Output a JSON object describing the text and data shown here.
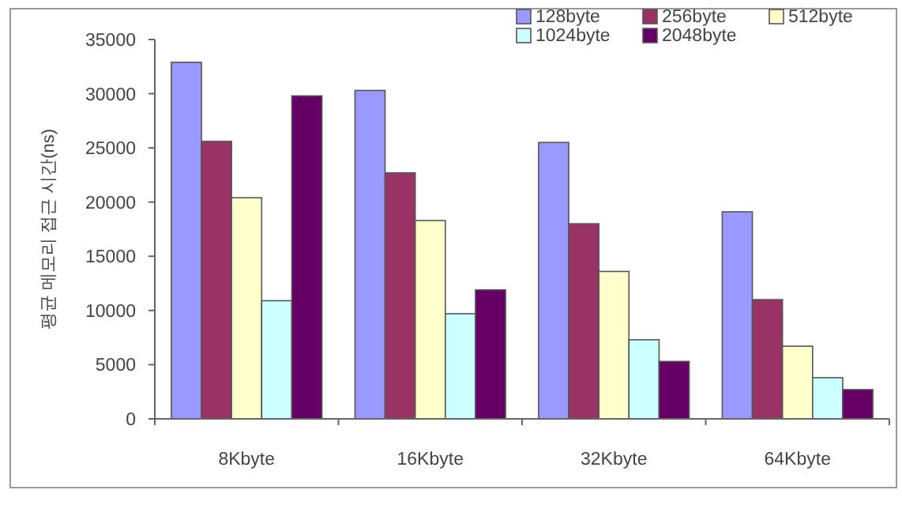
{
  "chart_data": {
    "type": "bar",
    "ylabel": "평균 메모리 접근 시간(ns)",
    "categories": [
      "8Kbyte",
      "16Kbyte",
      "32Kbyte",
      "64Kbyte"
    ],
    "series": [
      {
        "name": "128byte",
        "color": "#9999ff",
        "values": [
          32900,
          30300,
          25500,
          19100
        ]
      },
      {
        "name": "256byte",
        "color": "#993366",
        "values": [
          25600,
          22700,
          18000,
          11000
        ]
      },
      {
        "name": "512byte",
        "color": "#ffffcc",
        "values": [
          20400,
          18300,
          13600,
          6700
        ]
      },
      {
        "name": "1024byte",
        "color": "#ccffff",
        "values": [
          10900,
          9700,
          7300,
          3800
        ]
      },
      {
        "name": "2048byte",
        "color": "#660066",
        "values": [
          29800,
          11900,
          5300,
          2700
        ]
      }
    ],
    "ylim": [
      0,
      35000
    ],
    "yticks": [
      0,
      5000,
      10000,
      15000,
      20000,
      25000,
      30000,
      35000
    ],
    "grid": false,
    "legend": "top right"
  }
}
